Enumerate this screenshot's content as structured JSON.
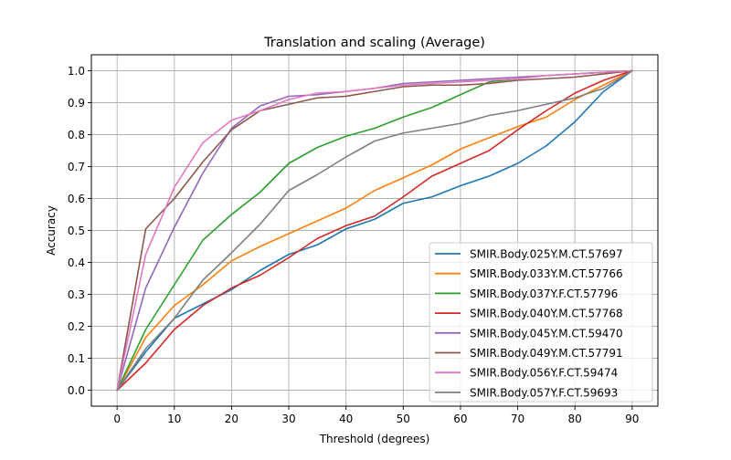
{
  "chart_data": {
    "type": "line",
    "title": "Translation and scaling (Average)",
    "xlabel": "Threshold (degrees)",
    "ylabel": "Accuracy",
    "xlim": [
      -4.5,
      94.5
    ],
    "ylim": [
      -0.05,
      1.05
    ],
    "x_ticks": [
      0,
      10,
      20,
      30,
      40,
      50,
      60,
      70,
      80,
      90
    ],
    "x_tick_labels": [
      "0",
      "10",
      "20",
      "30",
      "40",
      "50",
      "60",
      "70",
      "80",
      "90"
    ],
    "y_ticks": [
      0.0,
      0.1,
      0.2,
      0.3,
      0.4,
      0.5,
      0.6,
      0.7,
      0.8,
      0.9,
      1.0
    ],
    "y_tick_labels": [
      "0.0",
      "0.1",
      "0.2",
      "0.3",
      "0.4",
      "0.5",
      "0.6",
      "0.7",
      "0.8",
      "0.9",
      "1.0"
    ],
    "grid": true,
    "legend_position": "lower-right",
    "x": [
      0,
      5,
      10,
      15,
      20,
      25,
      30,
      35,
      40,
      45,
      50,
      55,
      60,
      65,
      70,
      75,
      80,
      85,
      90
    ],
    "series": [
      {
        "name": "SMIR.Body.025Y.M.CT.57697",
        "color": "#1f77b4",
        "values": [
          0.0,
          0.12,
          0.225,
          0.27,
          0.315,
          0.375,
          0.425,
          0.455,
          0.505,
          0.535,
          0.585,
          0.605,
          0.64,
          0.67,
          0.71,
          0.765,
          0.84,
          0.935,
          1.0
        ]
      },
      {
        "name": "SMIR.Body.033Y.M.CT.57766",
        "color": "#ff7f0e",
        "values": [
          0.0,
          0.165,
          0.265,
          0.33,
          0.405,
          0.45,
          0.49,
          0.53,
          0.57,
          0.625,
          0.665,
          0.705,
          0.755,
          0.79,
          0.825,
          0.855,
          0.91,
          0.955,
          1.0
        ]
      },
      {
        "name": "SMIR.Body.037Y.F.CT.57796",
        "color": "#2ca02c",
        "values": [
          0.0,
          0.19,
          0.33,
          0.47,
          0.55,
          0.62,
          0.71,
          0.76,
          0.795,
          0.82,
          0.855,
          0.885,
          0.925,
          0.965,
          0.975,
          0.985,
          0.99,
          0.995,
          1.0
        ]
      },
      {
        "name": "SMIR.Body.040Y.M.CT.57768",
        "color": "#d62728",
        "values": [
          0.0,
          0.085,
          0.19,
          0.265,
          0.32,
          0.36,
          0.415,
          0.475,
          0.515,
          0.545,
          0.605,
          0.67,
          0.71,
          0.75,
          0.815,
          0.875,
          0.93,
          0.97,
          1.0
        ]
      },
      {
        "name": "SMIR.Body.045Y.M.CT.59470",
        "color": "#9467bd",
        "values": [
          0.0,
          0.32,
          0.51,
          0.68,
          0.82,
          0.89,
          0.92,
          0.925,
          0.935,
          0.945,
          0.96,
          0.965,
          0.97,
          0.975,
          0.98,
          0.985,
          0.99,
          0.995,
          1.0
        ]
      },
      {
        "name": "SMIR.Body.049Y.M.CT.57791",
        "color": "#8c564b",
        "values": [
          0.0,
          0.505,
          0.6,
          0.715,
          0.815,
          0.875,
          0.895,
          0.915,
          0.92,
          0.935,
          0.95,
          0.955,
          0.955,
          0.96,
          0.97,
          0.975,
          0.98,
          0.99,
          1.0
        ]
      },
      {
        "name": "SMIR.Body.056Y.F.CT.59474",
        "color": "#e377c2",
        "values": [
          0.0,
          0.425,
          0.635,
          0.775,
          0.845,
          0.875,
          0.91,
          0.93,
          0.935,
          0.945,
          0.955,
          0.96,
          0.965,
          0.97,
          0.975,
          0.985,
          0.99,
          0.995,
          1.0
        ]
      },
      {
        "name": "SMIR.Body.057Y.F.CT.59693",
        "color": "#7f7f7f",
        "values": [
          0.0,
          0.13,
          0.225,
          0.345,
          0.43,
          0.52,
          0.625,
          0.675,
          0.73,
          0.78,
          0.805,
          0.82,
          0.835,
          0.86,
          0.875,
          0.895,
          0.915,
          0.945,
          1.0
        ]
      }
    ]
  }
}
